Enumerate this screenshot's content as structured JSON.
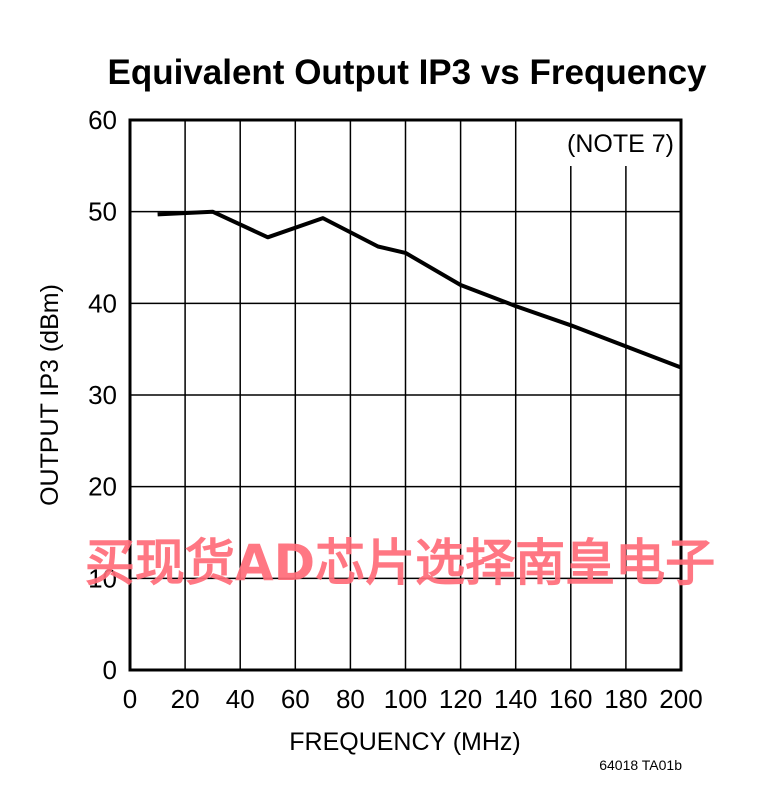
{
  "chart_data": {
    "type": "line",
    "title": "Equivalent Output IP3 vs Frequency",
    "xlabel": "FREQUENCY (MHz)",
    "ylabel": "OUTPUT IP3 (dBm)",
    "xlim": [
      0,
      200
    ],
    "ylim": [
      0,
      60
    ],
    "xticks": [
      0,
      20,
      40,
      60,
      80,
      100,
      120,
      140,
      160,
      180,
      200
    ],
    "yticks": [
      0,
      10,
      20,
      30,
      40,
      50,
      60
    ],
    "grid": true,
    "annotation": "(NOTE 7)",
    "figure_code": "64018 TA01b",
    "series": [
      {
        "x": [
          10,
          30,
          50,
          70,
          90,
          100,
          120,
          140,
          160,
          180,
          200
        ],
        "y": [
          49.7,
          50.0,
          47.2,
          49.3,
          46.2,
          45.5,
          42.0,
          39.7,
          37.6,
          35.3,
          33.0
        ]
      }
    ]
  },
  "watermark": "买现货AD芯片选择南皇电子",
  "colors": {
    "line": "#000000",
    "grid": "#000000",
    "watermark": "#ff6b78"
  }
}
